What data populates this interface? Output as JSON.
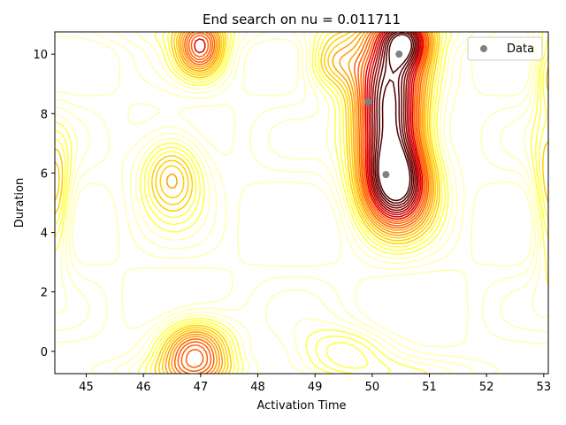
{
  "chart_data": {
    "type": "contour",
    "title": "End search on nu =  0.011711",
    "xlabel": "Activation Time",
    "ylabel": "Duration",
    "xlim": [
      44.45,
      53.08
    ],
    "ylim": [
      -0.75,
      10.75
    ],
    "x_ticks": [
      45,
      46,
      47,
      48,
      49,
      50,
      51,
      52,
      53
    ],
    "y_ticks": [
      0,
      2,
      4,
      6,
      8,
      10
    ],
    "colormap": [
      "#ffffb0",
      "#ffff40",
      "#ffd000",
      "#ffa000",
      "#ff6000",
      "#e00000",
      "#900000",
      "#500000"
    ],
    "grid": false,
    "legend": {
      "position": "top-right",
      "entries": [
        "Data"
      ]
    },
    "series": [
      {
        "name": "Data",
        "type": "scatter",
        "color": "#808080",
        "points": [
          {
            "x": 50.47,
            "y": 10.0
          },
          {
            "x": 49.93,
            "y": 8.4
          },
          {
            "x": 50.24,
            "y": 5.95
          }
        ]
      }
    ],
    "hills": [
      {
        "x": 50.3,
        "y": 8.2,
        "h": 1.2,
        "sx": 0.45,
        "sy": 1.9
      },
      {
        "x": 50.45,
        "y": 5.6,
        "h": 0.9,
        "sx": 0.45,
        "sy": 1.1
      },
      {
        "x": 50.6,
        "y": 10.4,
        "h": 0.6,
        "sx": 0.3,
        "sy": 0.6
      },
      {
        "x": 47.0,
        "y": 10.2,
        "h": 0.7,
        "sx": 0.3,
        "sy": 0.7
      },
      {
        "x": 46.9,
        "y": 0.0,
        "h": 0.75,
        "sx": 0.45,
        "sy": 0.8
      },
      {
        "x": 46.5,
        "y": 6.0,
        "h": 0.5,
        "sx": 0.4,
        "sy": 1.0
      },
      {
        "x": 44.45,
        "y": 5.0,
        "h": 0.45,
        "sx": 0.2,
        "sy": 1.5
      },
      {
        "x": 53.1,
        "y": 5.0,
        "h": 0.4,
        "sx": 0.2,
        "sy": 1.8
      },
      {
        "x": 53.1,
        "y": 9.5,
        "h": 0.4,
        "sx": 0.2,
        "sy": 1.0
      },
      {
        "x": 49.5,
        "y": 0.0,
        "h": 0.3,
        "sx": 0.6,
        "sy": 0.6
      },
      {
        "x": 49.3,
        "y": 9.8,
        "h": 0.45,
        "sx": 0.35,
        "sy": 0.7
      }
    ]
  }
}
